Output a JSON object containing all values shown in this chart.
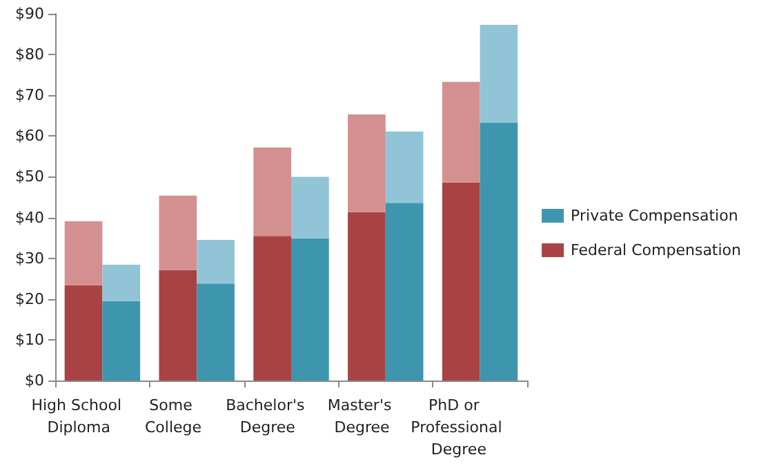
{
  "chart_data": {
    "type": "bar",
    "stacked": true,
    "categories": [
      "High School Diploma",
      null,
      "Some College",
      null,
      "Bachelor's Degree",
      null,
      "Master's Degree",
      null,
      "PhD or Professional Degree",
      null
    ],
    "series": [
      {
        "name": "Federal Compensation",
        "color": "#a94343",
        "values": [
          23.4,
          null,
          27.1,
          null,
          35.5,
          null,
          41.3,
          null,
          48.6,
          null
        ]
      },
      {
        "color": "#d49090",
        "values": [
          15.7,
          null,
          18.3,
          null,
          21.7,
          null,
          24.0,
          null,
          24.7,
          null
        ]
      },
      {
        "name": "Private Compensation",
        "color": "#3d96ae",
        "values": [
          null,
          19.5,
          null,
          23.8,
          null,
          34.9,
          null,
          43.6,
          null,
          63.3
        ]
      },
      {
        "color": "#92c4d8",
        "values": [
          null,
          8.9,
          null,
          10.7,
          null,
          15.1,
          null,
          17.5,
          null,
          24.0
        ]
      }
    ],
    "ylim": [
      0,
      90
    ],
    "yticks": [
      {
        "value": 0,
        "label": "$0"
      },
      {
        "value": 10,
        "label": "$10"
      },
      {
        "value": 20,
        "label": "$20"
      },
      {
        "value": 30,
        "label": "$30"
      },
      {
        "value": 40,
        "label": "$40"
      },
      {
        "value": 50,
        "label": "$50"
      },
      {
        "value": 60,
        "label": "$60"
      },
      {
        "value": 70,
        "label": "$70"
      },
      {
        "value": 80,
        "label": "$80"
      },
      {
        "value": 90,
        "label": "$90"
      }
    ],
    "grid": false,
    "legend": "right"
  }
}
